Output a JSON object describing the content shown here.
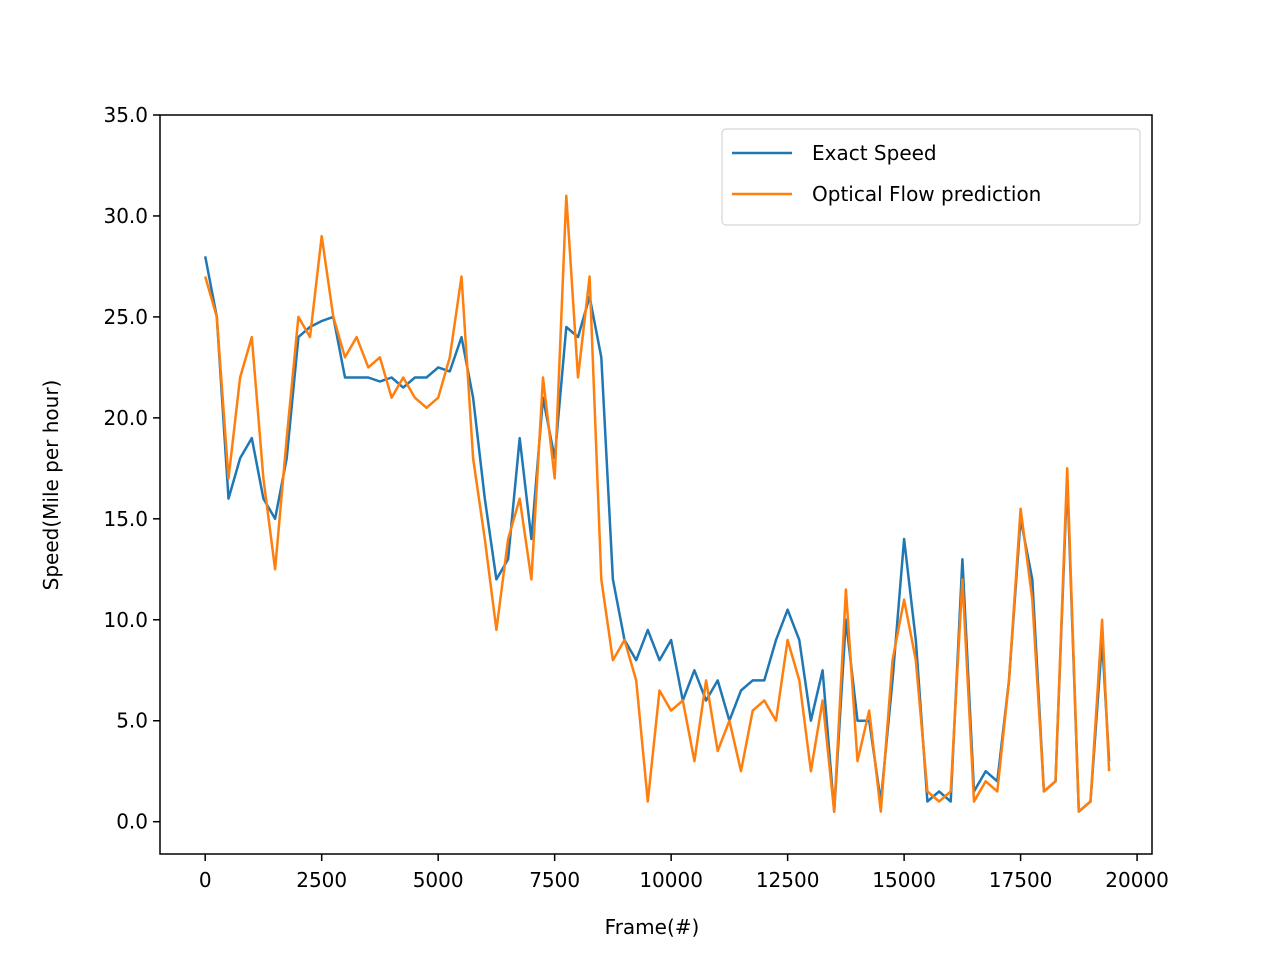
{
  "chart_data": {
    "type": "line",
    "x_label": "Frame(#)",
    "y_label": "Speed(Mile per hour)",
    "x": [
      0,
      250,
      500,
      750,
      1000,
      1250,
      1500,
      1750,
      2000,
      2250,
      2500,
      2750,
      3000,
      3250,
      3500,
      3750,
      4000,
      4250,
      4500,
      4750,
      5000,
      5250,
      5500,
      5750,
      6000,
      6250,
      6500,
      6750,
      7000,
      7250,
      7500,
      7750,
      8000,
      8250,
      8500,
      8750,
      9000,
      9250,
      9500,
      9750,
      10000,
      10250,
      10500,
      10750,
      11000,
      11250,
      11500,
      11750,
      12000,
      12250,
      12500,
      12750,
      13000,
      13250,
      13500,
      13750,
      14000,
      14250,
      14500,
      14750,
      15000,
      15250,
      15500,
      15750,
      16000,
      16250,
      16500,
      16750,
      17000,
      17250,
      17500,
      17750,
      18000,
      18250,
      18500,
      18750,
      19000,
      19250,
      19400
    ],
    "series": [
      {
        "name": "Exact Speed",
        "color": "#1f77b4",
        "values": [
          28,
          25,
          16,
          18,
          19,
          16,
          15,
          18,
          24,
          24.5,
          24.8,
          25,
          22,
          22,
          22,
          21.8,
          22,
          21.5,
          22,
          22,
          22.5,
          22.3,
          24,
          21,
          16,
          12,
          13,
          19,
          14,
          21,
          18,
          24.5,
          24,
          26,
          23,
          12,
          9,
          8,
          9.5,
          8,
          9,
          6,
          7.5,
          6,
          7,
          5,
          6.5,
          7,
          7,
          9,
          10.5,
          9,
          5,
          7.5,
          0.5,
          10,
          5,
          5,
          1,
          7,
          14,
          9,
          1,
          1.5,
          1,
          13,
          1.5,
          2.5,
          2,
          7,
          15,
          12,
          1.5,
          2,
          17,
          0.5,
          1,
          9,
          3
        ]
      },
      {
        "name": "Optical Flow prediction",
        "color": "#ff7f0e",
        "values": [
          27,
          25,
          17,
          22,
          24,
          17,
          12.5,
          19,
          25,
          24,
          29,
          25,
          23,
          24,
          22.5,
          23,
          21,
          22,
          21,
          20.5,
          21,
          23,
          27,
          18,
          14,
          9.5,
          14,
          16,
          12,
          22,
          17,
          31,
          22,
          27,
          12,
          8,
          9,
          7,
          1,
          6.5,
          5.5,
          6,
          3,
          7,
          3.5,
          5,
          2.5,
          5.5,
          6,
          5,
          9,
          7,
          2.5,
          6,
          0.5,
          11.5,
          3,
          5.5,
          0.5,
          8,
          11,
          8,
          1.5,
          1,
          1.5,
          12,
          1,
          2,
          1.5,
          7,
          15.5,
          11,
          1.5,
          2,
          17.5,
          0.5,
          1,
          10,
          2.5
        ]
      }
    ],
    "xlim": [
      -970,
      20320
    ],
    "ylim": [
      -1.6,
      35
    ],
    "xticks": [
      0,
      2500,
      5000,
      7500,
      10000,
      12500,
      15000,
      17500,
      20000
    ],
    "yticks": [
      {
        "value": 0,
        "label": "0.0"
      },
      {
        "value": 5,
        "label": "5.0"
      },
      {
        "value": 10,
        "label": "10.0"
      },
      {
        "value": 15,
        "label": "15.0"
      },
      {
        "value": 20,
        "label": "20.0"
      },
      {
        "value": 25,
        "label": "25.0"
      },
      {
        "value": 30,
        "label": "30.0"
      },
      {
        "value": 35,
        "label": "35.0"
      }
    ],
    "grid": false,
    "legend": "upper right"
  }
}
